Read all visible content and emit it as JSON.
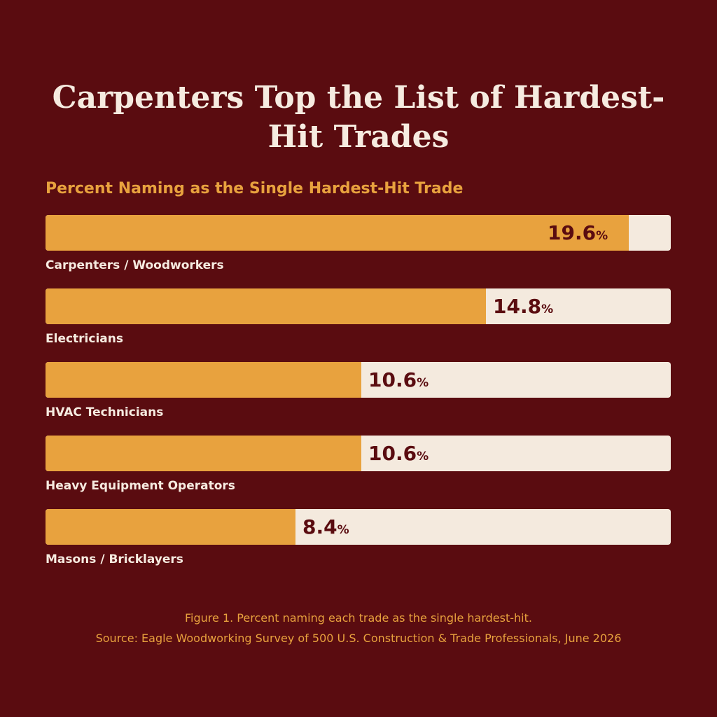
{
  "title": "Carpenters Top the List of Hardest-Hit Trades",
  "chart_data": {
    "type": "bar",
    "orientation": "horizontal",
    "title": "Carpenters Top the List of Hardest-Hit Trades",
    "subtitle": "Percent Naming as the Single Hardest-Hit Trade",
    "categories": [
      "Carpenters / Woodworkers",
      "Electricians",
      "HVAC Technicians",
      "Heavy Equipment Operators",
      "Masons / Bricklayers"
    ],
    "values": [
      19.6,
      14.8,
      10.6,
      10.6,
      8.4
    ],
    "value_labels": [
      "19.6",
      "14.8",
      "10.6",
      "10.6",
      "8.4"
    ],
    "value_suffix": "%",
    "xlim": [
      0,
      21
    ],
    "grid": false,
    "legend": "none"
  },
  "caption": {
    "figure": "Figure 1. Percent naming each trade as the single hardest-hit.",
    "source": "Source: Eagle Woodworking Survey of 500 U.S. Construction & Trade Professionals, June 2026"
  },
  "colors": {
    "background": "#5a0c10",
    "bar_fill": "#e8a23e",
    "bar_track": "#f4eade",
    "title_text": "#f6ebe0",
    "accent_text": "#e8a23e"
  }
}
